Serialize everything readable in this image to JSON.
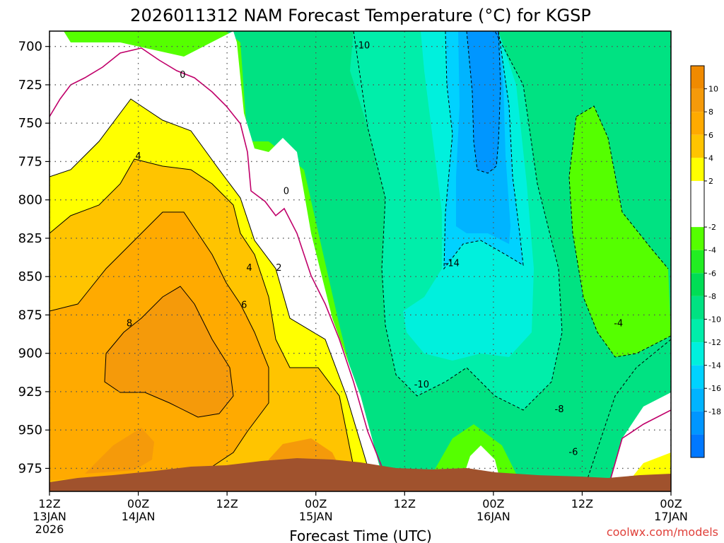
{
  "chart_data": {
    "type": "contour",
    "title": "2026011312 NAM Forecast Temperature (°C) for KGSP",
    "xlabel": "Forecast Time (UTC)",
    "ylabel": "",
    "credit": "coolwx.com/models",
    "y_axis": {
      "label": "",
      "range": [
        990,
        690
      ],
      "ticks": [
        700,
        725,
        750,
        775,
        800,
        825,
        850,
        875,
        900,
        925,
        950,
        975
      ]
    },
    "x_axis": {
      "range_hours": [
        0,
        84
      ],
      "ticks": [
        {
          "hour": 0,
          "hour_label": "12Z",
          "date_label": "13JAN",
          "year_label": "2026"
        },
        {
          "hour": 12,
          "hour_label": "00Z",
          "date_label": "14JAN",
          "year_label": ""
        },
        {
          "hour": 24,
          "hour_label": "12Z",
          "date_label": "",
          "year_label": ""
        },
        {
          "hour": 36,
          "hour_label": "00Z",
          "date_label": "15JAN",
          "year_label": ""
        },
        {
          "hour": 48,
          "hour_label": "12Z",
          "date_label": "",
          "year_label": ""
        },
        {
          "hour": 60,
          "hour_label": "00Z",
          "date_label": "16JAN",
          "year_label": ""
        },
        {
          "hour": 72,
          "hour_label": "12Z",
          "date_label": "",
          "year_label": ""
        },
        {
          "hour": 84,
          "hour_label": "00Z",
          "date_label": "17JAN",
          "year_label": ""
        }
      ]
    },
    "colorbar": {
      "labels": [
        10,
        8,
        6,
        4,
        2,
        -2,
        -4,
        -6,
        -8,
        -10,
        -12,
        -14,
        -16,
        -18
      ],
      "bins": [
        {
          "from": 12,
          "to": 10,
          "color": "#f08a00"
        },
        {
          "from": 10,
          "to": 8,
          "color": "#f59a0a"
        },
        {
          "from": 8,
          "to": 6,
          "color": "#ffaa00"
        },
        {
          "from": 6,
          "to": 4,
          "color": "#ffc400"
        },
        {
          "from": 4,
          "to": 2,
          "color": "#ffff00"
        },
        {
          "from": 2,
          "to": -2,
          "color": "#ffffff"
        },
        {
          "from": -2,
          "to": -4,
          "color": "#55ff00"
        },
        {
          "from": -4,
          "to": -6,
          "color": "#22ee22"
        },
        {
          "from": -6,
          "to": -8,
          "color": "#00dd55"
        },
        {
          "from": -8,
          "to": -10,
          "color": "#00e282"
        },
        {
          "from": -10,
          "to": -12,
          "color": "#00eeaa"
        },
        {
          "from": -12,
          "to": -14,
          "color": "#00f0dd"
        },
        {
          "from": -14,
          "to": -16,
          "color": "#00d2ff"
        },
        {
          "from": -16,
          "to": -18,
          "color": "#00b4ff"
        },
        {
          "from": -18,
          "to": -20,
          "color": "#0096ff"
        },
        {
          "from": -20,
          "to": -22,
          "color": "#0078ff"
        }
      ]
    },
    "contour_labels": [
      {
        "text": "-10",
        "hour": 42.3,
        "pressure": 699
      },
      {
        "text": "0",
        "hour": 18.0,
        "pressure": 718
      },
      {
        "text": "4",
        "hour": 12.0,
        "pressure": 771
      },
      {
        "text": "0",
        "hour": 32.0,
        "pressure": 794
      },
      {
        "text": "4",
        "hour": 27.0,
        "pressure": 844
      },
      {
        "text": "2",
        "hour": 31.0,
        "pressure": 844
      },
      {
        "text": "6",
        "hour": 26.3,
        "pressure": 868
      },
      {
        "text": "-14",
        "hour": 54.4,
        "pressure": 841
      },
      {
        "text": "8",
        "hour": 10.8,
        "pressure": 880
      },
      {
        "text": "-4",
        "hour": 76.9,
        "pressure": 880
      },
      {
        "text": "-10",
        "hour": 50.3,
        "pressure": 920
      },
      {
        "text": "-8",
        "hour": 68.9,
        "pressure": 936
      },
      {
        "text": "-6",
        "hour": 70.8,
        "pressure": 964
      }
    ],
    "colors": {
      "terrain": "#a0522d",
      "zero_line": "#c0006a",
      "grid": "#555555"
    }
  }
}
